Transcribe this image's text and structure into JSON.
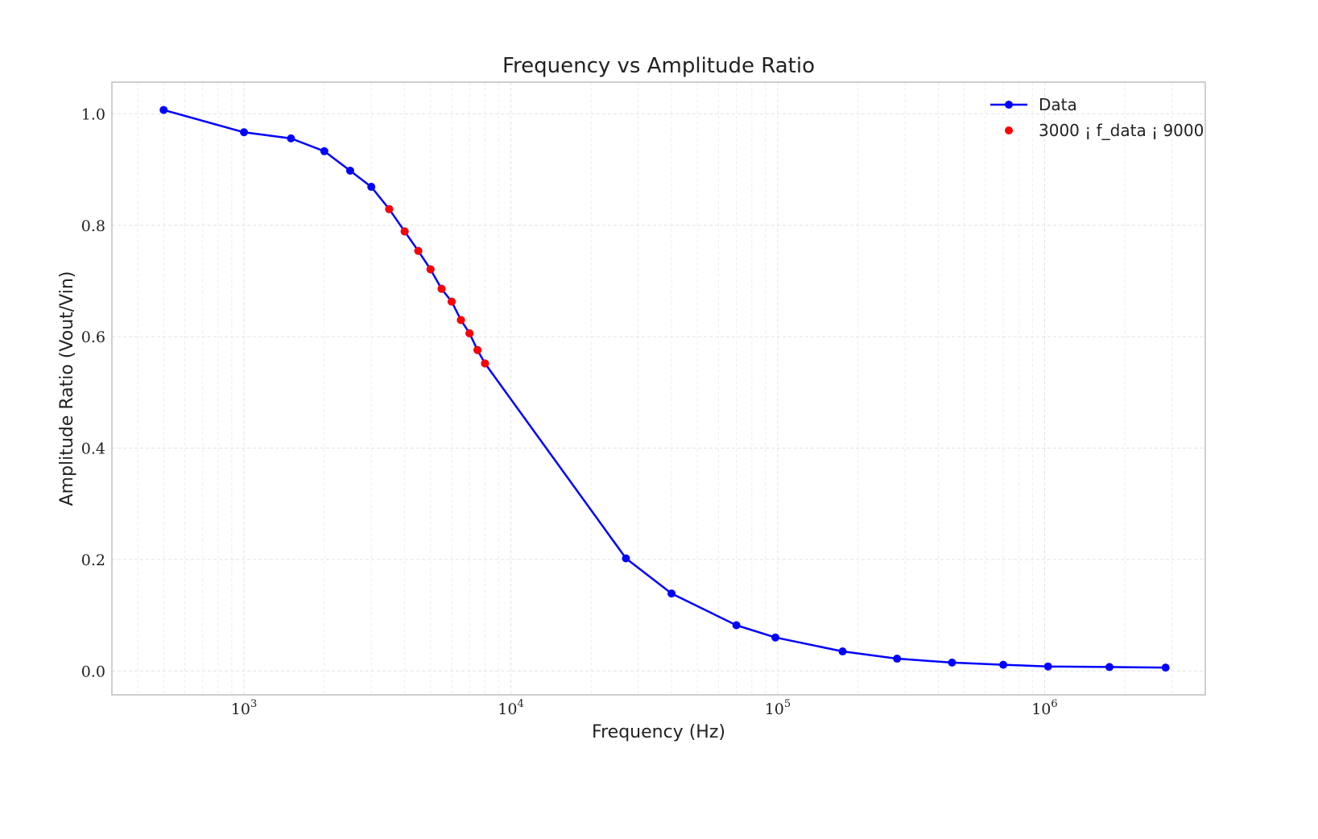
{
  "chart_data": {
    "type": "line",
    "title": "Frequency vs Amplitude Ratio",
    "xlabel": "Frequency (Hz)",
    "ylabel": "Amplitude Ratio (Vout/Vin)",
    "xscale": "log",
    "xlim": [
      320,
      4000000
    ],
    "ylim": [
      -0.043,
      1.057
    ],
    "yticks": [
      "0.0",
      "0.2",
      "0.4",
      "0.6",
      "0.8",
      "1.0"
    ],
    "xticks": [
      {
        "base": "10",
        "exp": "3",
        "value": 1000
      },
      {
        "base": "10",
        "exp": "4",
        "value": 10000
      },
      {
        "base": "10",
        "exp": "5",
        "value": 100000
      },
      {
        "base": "10",
        "exp": "6",
        "value": 1000000
      }
    ],
    "grid": true,
    "legend_position": "top-right",
    "colors": {
      "data": "#0000ff",
      "highlight": "#ff0000"
    },
    "series": [
      {
        "name": "Data",
        "style": "line-marker",
        "x": [
          500,
          1000,
          1500,
          2000,
          2500,
          3000,
          3500,
          4000,
          4500,
          5000,
          5500,
          6000,
          6500,
          7000,
          7500,
          8000,
          27000,
          40000,
          70000,
          98000,
          175000,
          280000,
          450000,
          700000,
          1030000,
          1750000,
          2840000
        ],
        "y": [
          1.007,
          0.967,
          0.956,
          0.933,
          0.898,
          0.869,
          0.829,
          0.789,
          0.754,
          0.721,
          0.686,
          0.663,
          0.63,
          0.606,
          0.576,
          0.552,
          0.202,
          0.139,
          0.082,
          0.06,
          0.035,
          0.022,
          0.015,
          0.011,
          0.008,
          0.007,
          0.006
        ]
      },
      {
        "name": "3000 ¡ f_data ¡ 9000",
        "style": "marker",
        "x": [
          3500,
          4000,
          4500,
          5000,
          5500,
          6000,
          6500,
          7000,
          7500,
          8000
        ],
        "y": [
          0.829,
          0.789,
          0.754,
          0.721,
          0.686,
          0.663,
          0.63,
          0.606,
          0.576,
          0.552
        ]
      }
    ]
  }
}
